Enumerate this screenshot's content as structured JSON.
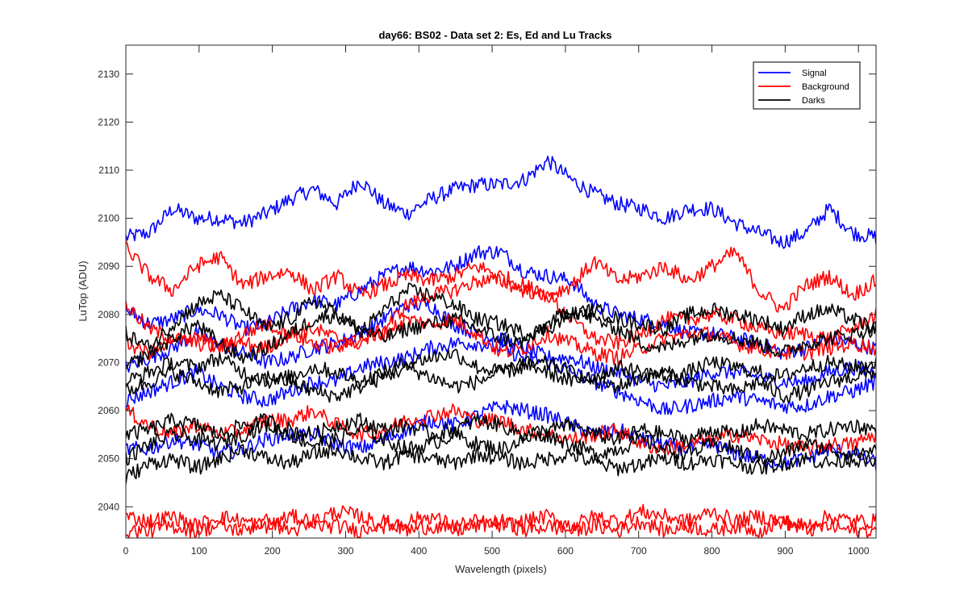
{
  "colors": {
    "signal": "#0000ff",
    "background": "#ff0000",
    "darks": "#000000",
    "axes": "#262626"
  },
  "chart_data": {
    "type": "line",
    "title": "day66: BS02 - Data set 2: Es, Ed and Lu Tracks",
    "xlabel": "Wavelength (pixels)",
    "ylabel": "LuTop (ADU)",
    "xlim": [
      0,
      1024
    ],
    "ylim": [
      2033.5,
      2136
    ],
    "xticks": [
      0,
      100,
      200,
      300,
      400,
      500,
      600,
      700,
      800,
      900,
      1000
    ],
    "yticks": [
      2040,
      2050,
      2060,
      2070,
      2080,
      2090,
      2100,
      2110,
      2120,
      2130
    ],
    "grid": false,
    "legend_position": "top-right",
    "legend": [
      {
        "name": "Signal",
        "color": "#0000ff"
      },
      {
        "name": "Background",
        "color": "#ff0000"
      },
      {
        "name": "Darks",
        "color": "#000000"
      }
    ],
    "x_step": 32,
    "series": [
      {
        "group": "Signal",
        "values": [
          2096,
          2097,
          2102,
          2100,
          2100,
          2099,
          2101,
          2104,
          2106,
          2103,
          2108,
          2103,
          2101,
          2104,
          2106,
          2107,
          2107,
          2108,
          2112,
          2108,
          2105,
          2103,
          2102,
          2100,
          2102,
          2102,
          2099,
          2097,
          2095,
          2097,
          2102,
          2097,
          2096
        ]
      },
      {
        "group": "Signal",
        "values": [
          2081,
          2078,
          2079,
          2081,
          2080,
          2077,
          2078,
          2081,
          2083,
          2082,
          2085,
          2088,
          2090,
          2089,
          2090,
          2093,
          2093,
          2089,
          2088,
          2087,
          2082,
          2080,
          2079,
          2078,
          2076,
          2076,
          2075,
          2074,
          2072,
          2073,
          2075,
          2074,
          2073
        ]
      },
      {
        "group": "Signal",
        "values": [
          2069,
          2071,
          2073,
          2076,
          2074,
          2072,
          2070,
          2071,
          2073,
          2074,
          2076,
          2079,
          2082,
          2082,
          2078,
          2076,
          2075,
          2073,
          2071,
          2071,
          2069,
          2068,
          2066,
          2065,
          2066,
          2068,
          2068,
          2067,
          2066,
          2066,
          2068,
          2069,
          2068
        ]
      },
      {
        "group": "Signal",
        "values": [
          2062,
          2064,
          2066,
          2068,
          2065,
          2063,
          2062,
          2064,
          2066,
          2066,
          2069,
          2070,
          2071,
          2073,
          2074,
          2074,
          2073,
          2071,
          2070,
          2068,
          2066,
          2064,
          2062,
          2060,
          2061,
          2062,
          2063,
          2062,
          2061,
          2061,
          2063,
          2064,
          2066
        ]
      },
      {
        "group": "Signal",
        "values": [
          2052,
          2052,
          2054,
          2053,
          2051,
          2052,
          2054,
          2055,
          2055,
          2053,
          2052,
          2054,
          2056,
          2058,
          2057,
          2059,
          2061,
          2060,
          2059,
          2057,
          2055,
          2056,
          2054,
          2053,
          2052,
          2053,
          2051,
          2050,
          2049,
          2050,
          2052,
          2051,
          2049
        ]
      },
      {
        "group": "Background",
        "values": [
          2094,
          2088,
          2085,
          2090,
          2092,
          2086,
          2088,
          2089,
          2085,
          2088,
          2084,
          2086,
          2088,
          2087,
          2088,
          2090,
          2088,
          2086,
          2084,
          2086,
          2091,
          2087,
          2088,
          2090,
          2087,
          2090,
          2093,
          2085,
          2081,
          2086,
          2088,
          2084,
          2087
        ]
      },
      {
        "group": "Background",
        "values": [
          2082,
          2077,
          2075,
          2074,
          2073,
          2076,
          2078,
          2076,
          2077,
          2075,
          2074,
          2077,
          2082,
          2084,
          2085,
          2087,
          2087,
          2085,
          2084,
          2079,
          2075,
          2074,
          2076,
          2079,
          2079,
          2080,
          2079,
          2077,
          2076,
          2076,
          2075,
          2077,
          2080
        ]
      },
      {
        "group": "Background",
        "values": [
          2074,
          2072,
          2074,
          2076,
          2073,
          2074,
          2073,
          2076,
          2074,
          2073,
          2075,
          2076,
          2079,
          2078,
          2079,
          2076,
          2072,
          2073,
          2076,
          2074,
          2072,
          2071,
          2073,
          2075,
          2076,
          2076,
          2074,
          2073,
          2072,
          2072,
          2073,
          2074,
          2073
        ]
      },
      {
        "group": "Background",
        "values": [
          2060,
          2057,
          2055,
          2057,
          2055,
          2056,
          2058,
          2058,
          2060,
          2057,
          2055,
          2056,
          2058,
          2059,
          2060,
          2058,
          2058,
          2056,
          2055,
          2054,
          2055,
          2056,
          2053,
          2052,
          2053,
          2054,
          2055,
          2054,
          2053,
          2052,
          2053,
          2053,
          2055
        ]
      },
      {
        "group": "Background",
        "values": [
          2038,
          2037,
          2038,
          2036,
          2038,
          2037,
          2036,
          2038,
          2037,
          2039,
          2038,
          2036,
          2037,
          2038,
          2036,
          2037,
          2036,
          2037,
          2038,
          2036,
          2038,
          2037,
          2039,
          2038,
          2037,
          2039,
          2037,
          2038,
          2037,
          2036,
          2038,
          2037,
          2037
        ]
      },
      {
        "group": "Background",
        "values": [
          2035,
          2035,
          2036,
          2035,
          2036,
          2035,
          2037,
          2035,
          2036,
          2036,
          2035,
          2037,
          2035,
          2036,
          2035,
          2036,
          2037,
          2035,
          2036,
          2035,
          2036,
          2035,
          2037,
          2035,
          2036,
          2035,
          2036,
          2035,
          2037,
          2035,
          2036,
          2035,
          2035
        ]
      },
      {
        "group": "Darks",
        "values": [
          2076,
          2073,
          2078,
          2082,
          2084,
          2081,
          2077,
          2079,
          2083,
          2080,
          2076,
          2081,
          2085,
          2084,
          2082,
          2079,
          2078,
          2076,
          2077,
          2080,
          2081,
          2079,
          2078,
          2077,
          2080,
          2081,
          2080,
          2079,
          2077,
          2080,
          2081,
          2079,
          2077
        ]
      },
      {
        "group": "Darks",
        "values": [
          2069,
          2072,
          2075,
          2078,
          2074,
          2071,
          2073,
          2076,
          2079,
          2080,
          2077,
          2075,
          2077,
          2078,
          2079,
          2077,
          2075,
          2074,
          2078,
          2081,
          2079,
          2077,
          2074,
          2073,
          2075,
          2076,
          2075,
          2074,
          2072,
          2074,
          2075,
          2076,
          2077
        ]
      },
      {
        "group": "Darks",
        "values": [
          2066,
          2068,
          2070,
          2069,
          2071,
          2068,
          2066,
          2067,
          2069,
          2068,
          2066,
          2068,
          2070,
          2071,
          2072,
          2069,
          2068,
          2070,
          2068,
          2066,
          2067,
          2069,
          2068,
          2067,
          2068,
          2070,
          2069,
          2068,
          2067,
          2069,
          2070,
          2069,
          2070
        ]
      },
      {
        "group": "Darks",
        "values": [
          2064,
          2066,
          2068,
          2066,
          2064,
          2065,
          2067,
          2066,
          2064,
          2063,
          2065,
          2067,
          2069,
          2067,
          2065,
          2066,
          2068,
          2069,
          2070,
          2068,
          2066,
          2065,
          2067,
          2068,
          2066,
          2065,
          2064,
          2066,
          2063,
          2064,
          2066,
          2067,
          2068
        ]
      },
      {
        "group": "Darks",
        "values": [
          2055,
          2056,
          2058,
          2057,
          2055,
          2057,
          2058,
          2056,
          2055,
          2057,
          2058,
          2056,
          2057,
          2055,
          2056,
          2058,
          2057,
          2055,
          2056,
          2057,
          2055,
          2054,
          2056,
          2055,
          2054,
          2056,
          2055,
          2057,
          2056,
          2055,
          2056,
          2057,
          2056
        ]
      },
      {
        "group": "Darks",
        "values": [
          2050,
          2053,
          2055,
          2054,
          2053,
          2055,
          2057,
          2055,
          2053,
          2054,
          2056,
          2054,
          2052,
          2053,
          2055,
          2053,
          2052,
          2054,
          2055,
          2053,
          2051,
          2052,
          2054,
          2052,
          2051,
          2053,
          2052,
          2050,
          2051,
          2053,
          2052,
          2051,
          2052
        ]
      },
      {
        "group": "Darks",
        "values": [
          2046,
          2049,
          2050,
          2048,
          2050,
          2052,
          2050,
          2049,
          2051,
          2052,
          2050,
          2049,
          2051,
          2050,
          2049,
          2051,
          2050,
          2049,
          2050,
          2051,
          2049,
          2048,
          2049,
          2050,
          2049,
          2050,
          2049,
          2048,
          2049,
          2050,
          2049,
          2050,
          2049
        ]
      }
    ]
  }
}
